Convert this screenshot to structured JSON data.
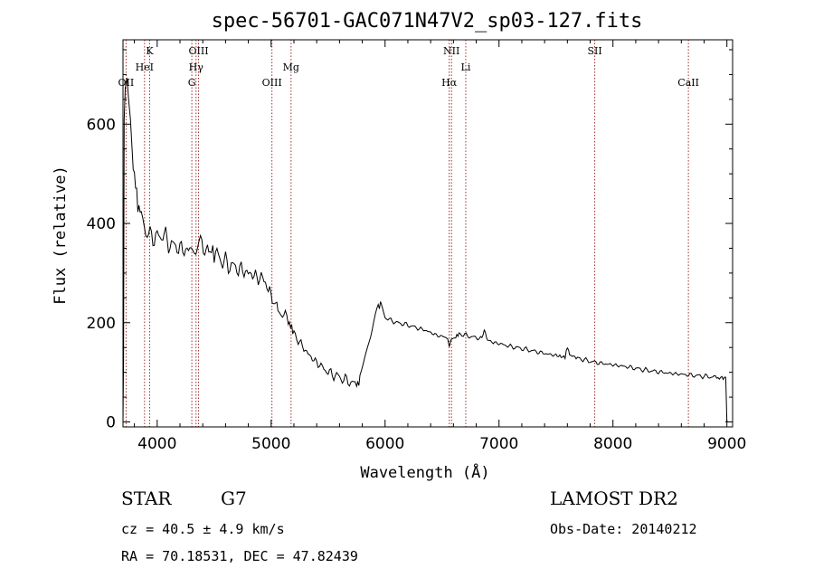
{
  "chart_data": {
    "type": "line",
    "title": "spec-56701-GAC071N47V2_sp03-127.fits",
    "xlabel": "Wavelength (Å)",
    "ylabel": "Flux (relative)",
    "xlim": [
      3700,
      9050
    ],
    "ylim": [
      -10,
      770
    ],
    "xticks": [
      4000,
      5000,
      6000,
      7000,
      8000,
      9000
    ],
    "yticks": [
      0,
      200,
      400,
      600
    ],
    "grid": false,
    "series": [
      {
        "x": [
          3700,
          3705,
          3710,
          3720,
          3735,
          3750,
          3765,
          3780,
          3800,
          3830,
          3860,
          3900,
          3950,
          4000,
          4050,
          4100,
          4150,
          4200,
          4250,
          4300,
          4340,
          4380,
          4430,
          4500,
          4550,
          4600,
          4650,
          4700,
          4750,
          4800,
          4850,
          4900,
          4950,
          5000,
          5030,
          5060,
          5100,
          5150,
          5180,
          5200,
          5250,
          5300,
          5350,
          5400,
          5450,
          5500,
          5550,
          5600,
          5650,
          5700,
          5750,
          5780,
          5820,
          5860,
          5900,
          5940,
          5960,
          6000,
          6050,
          6100,
          6150,
          6200,
          6250,
          6300,
          6350,
          6400,
          6450,
          6500,
          6550,
          6563,
          6580,
          6620,
          6650,
          6700,
          6750,
          6800,
          6850,
          6870,
          6900,
          6950,
          7000,
          7100,
          7200,
          7300,
          7400,
          7500,
          7580,
          7600,
          7620,
          7700,
          7800,
          7900,
          8000,
          8100,
          8200,
          8300,
          8400,
          8500,
          8600,
          8700,
          8800,
          8900,
          8990,
          9000
        ],
        "y": [
          0,
          130,
          600,
          680,
          700,
          650,
          590,
          540,
          500,
          440,
          410,
          380,
          375,
          370,
          380,
          360,
          355,
          350,
          345,
          350,
          340,
          355,
          350,
          340,
          330,
          320,
          315,
          310,
          305,
          300,
          295,
          290,
          285,
          250,
          240,
          230,
          220,
          205,
          190,
          180,
          160,
          145,
          130,
          120,
          110,
          100,
          95,
          90,
          85,
          80,
          75,
          90,
          130,
          170,
          205,
          235,
          230,
          210,
          205,
          200,
          198,
          195,
          192,
          188,
          185,
          180,
          175,
          172,
          170,
          155,
          165,
          170,
          178,
          175,
          172,
          170,
          168,
          185,
          165,
          160,
          158,
          152,
          148,
          143,
          138,
          134,
          130,
          152,
          135,
          128,
          122,
          118,
          115,
          112,
          108,
          104,
          101,
          98,
          96,
          94,
          92,
          90,
          88,
          0
        ]
      }
    ],
    "lines": [
      {
        "label": "OII",
        "x": 3727,
        "row": 3
      },
      {
        "label": "K",
        "x": 3934,
        "row": 1
      },
      {
        "label": "HeI",
        "x": 3889,
        "row": 2
      },
      {
        "label": "OIII",
        "x": 4363,
        "row": 1
      },
      {
        "label": "Hγ",
        "x": 4341,
        "row": 2
      },
      {
        "label": "G",
        "x": 4304,
        "row": 3
      },
      {
        "label": "OIII",
        "x": 5007,
        "row": 3
      },
      {
        "label": "Mg",
        "x": 5175,
        "row": 2
      },
      {
        "label": "NII",
        "x": 6583,
        "row": 1
      },
      {
        "label": "Hα",
        "x": 6563,
        "row": 3
      },
      {
        "label": "Li",
        "x": 6708,
        "row": 2
      },
      {
        "label": "SII",
        "x": 7840,
        "row": 1
      },
      {
        "label": "CaII",
        "x": 8662,
        "row": 3
      }
    ]
  },
  "info": {
    "class": "STAR",
    "subclass": "G7",
    "survey": "LAMOST DR2",
    "cz": "cz = 40.5 ± 4.9 km/s",
    "obs_date": "Obs-Date: 20140212",
    "coords": "RA =  70.18531, DEC =  47.82439"
  }
}
